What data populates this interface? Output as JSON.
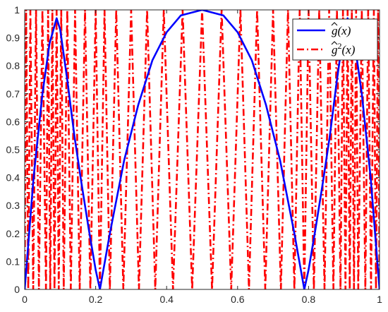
{
  "chart_data": {
    "type": "line",
    "xlim": [
      0,
      1
    ],
    "ylim": [
      0,
      1
    ],
    "x_ticks": [
      "0",
      "0.2",
      "0.4",
      "0.6",
      "0.8",
      "1"
    ],
    "y_ticks": [
      "0",
      "0.1",
      "0.2",
      "0.3",
      "0.4",
      "0.5",
      "0.6",
      "0.7",
      "0.8",
      "0.9",
      "1"
    ],
    "grid": false,
    "legend_position": "top-right",
    "series": [
      {
        "name": "ĝ(x)",
        "legend_base": "g",
        "legend_sup": "",
        "legend_arg": "(x)",
        "color": "#0000ff",
        "style": "solid",
        "points": [
          [
            0.0,
            0.0
          ],
          [
            0.025,
            0.4
          ],
          [
            0.05,
            0.7
          ],
          [
            0.07,
            0.88
          ],
          [
            0.09,
            0.97
          ],
          [
            0.1,
            0.93
          ],
          [
            0.12,
            0.75
          ],
          [
            0.14,
            0.55
          ],
          [
            0.16,
            0.38
          ],
          [
            0.18,
            0.22
          ],
          [
            0.2,
            0.07
          ],
          [
            0.212,
            0.0
          ],
          [
            0.24,
            0.2
          ],
          [
            0.28,
            0.46
          ],
          [
            0.32,
            0.66
          ],
          [
            0.36,
            0.82
          ],
          [
            0.4,
            0.92
          ],
          [
            0.44,
            0.98
          ],
          [
            0.5,
            1.0
          ],
          [
            0.56,
            0.98
          ],
          [
            0.6,
            0.92
          ],
          [
            0.64,
            0.82
          ],
          [
            0.68,
            0.66
          ],
          [
            0.72,
            0.46
          ],
          [
            0.76,
            0.2
          ],
          [
            0.788,
            0.0
          ],
          [
            0.8,
            0.07
          ],
          [
            0.82,
            0.22
          ],
          [
            0.84,
            0.38
          ],
          [
            0.86,
            0.55
          ],
          [
            0.88,
            0.75
          ],
          [
            0.9,
            0.93
          ],
          [
            0.91,
            0.97
          ],
          [
            0.93,
            0.88
          ],
          [
            0.95,
            0.7
          ],
          [
            0.975,
            0.4
          ],
          [
            1.0,
            0.0
          ]
        ]
      },
      {
        "name": "ĝ²(x)",
        "legend_base": "g",
        "legend_sup": "2",
        "legend_arg": "(x)",
        "color": "#ff0000",
        "style": "dashdot",
        "points": [
          [
            0.0,
            0.0
          ],
          [
            0.004,
            1.0
          ],
          [
            0.01,
            0.0
          ],
          [
            0.016,
            1.0
          ],
          [
            0.024,
            0.0
          ],
          [
            0.032,
            1.0
          ],
          [
            0.04,
            0.0
          ],
          [
            0.05,
            1.0
          ],
          [
            0.06,
            0.0
          ],
          [
            0.066,
            1.0
          ],
          [
            0.072,
            0.0
          ],
          [
            0.078,
            1.0
          ],
          [
            0.084,
            0.0
          ],
          [
            0.09,
            1.0
          ],
          [
            0.096,
            0.0
          ],
          [
            0.103,
            1.0
          ],
          [
            0.11,
            0.0
          ],
          [
            0.12,
            1.0
          ],
          [
            0.13,
            0.0
          ],
          [
            0.142,
            1.0
          ],
          [
            0.155,
            0.0
          ],
          [
            0.17,
            1.0
          ],
          [
            0.185,
            0.0
          ],
          [
            0.2,
            1.0
          ],
          [
            0.212,
            0.0
          ],
          [
            0.225,
            1.0
          ],
          [
            0.24,
            0.0
          ],
          [
            0.258,
            1.0
          ],
          [
            0.278,
            0.0
          ],
          [
            0.3,
            1.0
          ],
          [
            0.322,
            0.0
          ],
          [
            0.345,
            1.0
          ],
          [
            0.368,
            0.0
          ],
          [
            0.392,
            1.0
          ],
          [
            0.418,
            0.0
          ],
          [
            0.445,
            1.0
          ],
          [
            0.472,
            0.0
          ],
          [
            0.5,
            1.0
          ],
          [
            0.528,
            0.0
          ],
          [
            0.555,
            1.0
          ],
          [
            0.582,
            0.0
          ],
          [
            0.608,
            1.0
          ],
          [
            0.632,
            0.0
          ],
          [
            0.655,
            1.0
          ],
          [
            0.678,
            0.0
          ],
          [
            0.7,
            1.0
          ],
          [
            0.722,
            0.0
          ],
          [
            0.742,
            1.0
          ],
          [
            0.76,
            0.0
          ],
          [
            0.775,
            1.0
          ],
          [
            0.788,
            0.0
          ],
          [
            0.8,
            1.0
          ],
          [
            0.815,
            0.0
          ],
          [
            0.83,
            1.0
          ],
          [
            0.845,
            0.0
          ],
          [
            0.858,
            1.0
          ],
          [
            0.87,
            0.0
          ],
          [
            0.88,
            1.0
          ],
          [
            0.89,
            0.0
          ],
          [
            0.897,
            1.0
          ],
          [
            0.904,
            0.0
          ],
          [
            0.91,
            1.0
          ],
          [
            0.916,
            0.0
          ],
          [
            0.922,
            1.0
          ],
          [
            0.928,
            0.0
          ],
          [
            0.934,
            1.0
          ],
          [
            0.94,
            0.0
          ],
          [
            0.95,
            1.0
          ],
          [
            0.96,
            0.0
          ],
          [
            0.968,
            1.0
          ],
          [
            0.976,
            0.0
          ],
          [
            0.984,
            1.0
          ],
          [
            0.99,
            0.0
          ],
          [
            0.996,
            1.0
          ],
          [
            1.0,
            0.0
          ]
        ]
      }
    ]
  }
}
